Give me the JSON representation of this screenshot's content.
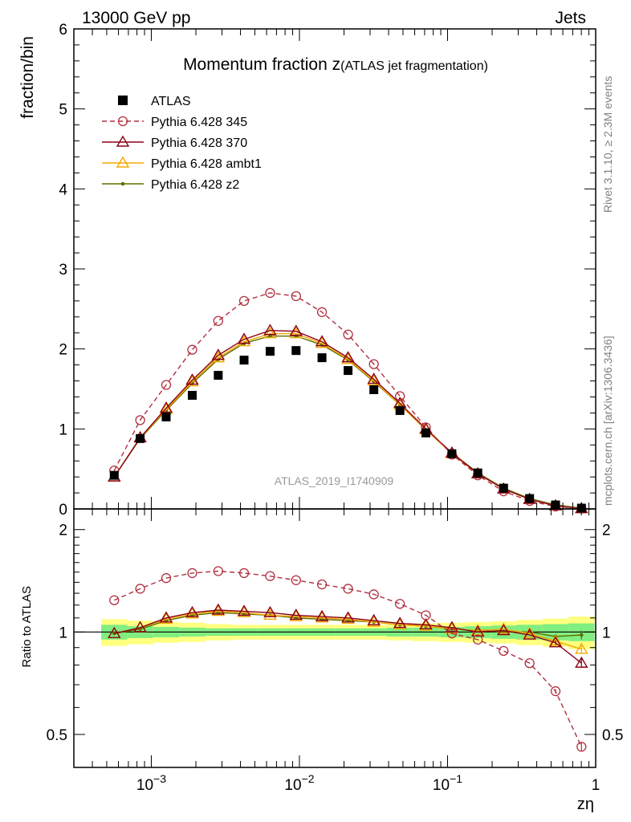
{
  "header": {
    "left": "13000 GeV pp",
    "right": "Jets",
    "rivet": "Rivet 3.1.10, ≥ 2.3M events",
    "mcplots": "mcplots.cern.ch [arXiv:1306.3436]"
  },
  "chart_data": {
    "type": "line",
    "title_main": "Momentum fraction z",
    "title_sub": "(ATLAS jet fragmentation)",
    "watermark": "ATLAS_2019_I1740909",
    "ylabel": "fraction/bin",
    "ratio_ylabel": "Ratio to ATLAS",
    "xlabel": "zη",
    "x_scale": "log",
    "xlim": [
      0.0003,
      1.0
    ],
    "ylim": [
      0,
      6
    ],
    "ratio_ylim": [
      0.4,
      2.3
    ],
    "ratio_scale": "log",
    "x_tick_labels": [
      {
        "x": 0.001,
        "base": "10",
        "exp": "−3"
      },
      {
        "x": 0.01,
        "base": "10",
        "exp": "−2"
      },
      {
        "x": 0.1,
        "base": "10",
        "exp": "−1"
      },
      {
        "x": 1,
        "base": "1",
        "exp": ""
      }
    ],
    "y_tick_labels": [
      "0",
      "1",
      "2",
      "3",
      "4",
      "5",
      "6"
    ],
    "ratio_tick_labels": [
      "0.5",
      "1",
      "2"
    ],
    "legend_position": "top-left",
    "x": [
      0.000562,
      0.000841,
      0.00126,
      0.00189,
      0.00283,
      0.00423,
      0.00634,
      0.00949,
      0.0142,
      0.0213,
      0.0318,
      0.0477,
      0.0714,
      0.107,
      0.16,
      0.239,
      0.358,
      0.536,
      0.802
    ],
    "data": {
      "name": "ATLAS",
      "values": [
        0.42,
        0.88,
        1.15,
        1.42,
        1.67,
        1.86,
        1.97,
        1.98,
        1.89,
        1.73,
        1.49,
        1.23,
        0.95,
        0.69,
        0.45,
        0.26,
        0.13,
        0.05,
        0.01
      ],
      "band_inner": [
        0.05,
        0.04,
        0.035,
        0.03,
        0.025,
        0.025,
        0.025,
        0.025,
        0.025,
        0.025,
        0.025,
        0.03,
        0.03,
        0.035,
        0.04,
        0.045,
        0.05,
        0.055,
        0.06
      ],
      "band_outer": [
        0.09,
        0.08,
        0.07,
        0.065,
        0.055,
        0.05,
        0.05,
        0.05,
        0.05,
        0.05,
        0.05,
        0.055,
        0.06,
        0.065,
        0.07,
        0.075,
        0.085,
        0.095,
        0.11
      ]
    },
    "series": [
      {
        "name": "Pythia 6.428 345",
        "color": "#b0303f",
        "dash": true,
        "marker": "circle",
        "values": [
          0.48,
          1.11,
          1.55,
          1.99,
          2.35,
          2.6,
          2.7,
          2.66,
          2.46,
          2.18,
          1.81,
          1.41,
          1.02,
          0.68,
          0.42,
          0.22,
          0.1,
          0.03,
          0.005
        ],
        "ratio": [
          1.24,
          1.34,
          1.44,
          1.49,
          1.51,
          1.49,
          1.46,
          1.42,
          1.38,
          1.34,
          1.29,
          1.21,
          1.12,
          0.99,
          0.95,
          0.88,
          0.81,
          0.67,
          0.46
        ]
      },
      {
        "name": "Pythia 6.428 370",
        "color": "#8b0015",
        "dash": false,
        "marker": "triangle",
        "values": [
          0.4,
          0.89,
          1.26,
          1.61,
          1.92,
          2.12,
          2.23,
          2.22,
          2.09,
          1.89,
          1.62,
          1.32,
          1.0,
          0.7,
          0.44,
          0.25,
          0.12,
          0.04,
          0.004
        ],
        "ratio": [
          0.99,
          1.03,
          1.1,
          1.14,
          1.16,
          1.15,
          1.14,
          1.12,
          1.11,
          1.1,
          1.08,
          1.06,
          1.05,
          1.03,
          1.0,
          1.01,
          0.98,
          0.93,
          0.81
        ]
      },
      {
        "name": "Pythia 6.428 ambt1",
        "color": "#f5a800",
        "dash": false,
        "marker": "triangle",
        "values": [
          0.4,
          0.89,
          1.24,
          1.59,
          1.89,
          2.09,
          2.19,
          2.19,
          2.07,
          1.87,
          1.6,
          1.3,
          0.99,
          0.69,
          0.44,
          0.25,
          0.12,
          0.04,
          0.004
        ],
        "ratio": [
          0.99,
          1.03,
          1.09,
          1.13,
          1.15,
          1.14,
          1.12,
          1.11,
          1.1,
          1.09,
          1.07,
          1.05,
          1.04,
          1.02,
          1.01,
          1.02,
          0.99,
          0.94,
          0.89
        ]
      },
      {
        "name": "Pythia 6.428 z2",
        "color": "#5f7000",
        "dash": false,
        "marker": "dot",
        "values": [
          0.4,
          0.88,
          1.23,
          1.57,
          1.87,
          2.07,
          2.16,
          2.16,
          2.05,
          1.86,
          1.59,
          1.3,
          0.99,
          0.7,
          0.45,
          0.26,
          0.13,
          0.05,
          0.01
        ],
        "ratio": [
          0.99,
          1.02,
          1.08,
          1.12,
          1.14,
          1.13,
          1.12,
          1.1,
          1.09,
          1.08,
          1.07,
          1.05,
          1.04,
          1.02,
          1.01,
          1.0,
          1.0,
          0.97,
          0.98
        ]
      }
    ]
  }
}
